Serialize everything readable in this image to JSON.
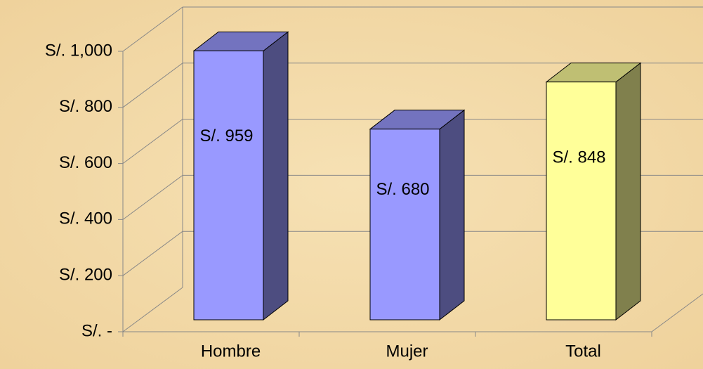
{
  "chart_data": {
    "type": "bar3d",
    "categories": [
      "Hombre",
      "Mujer",
      "Total"
    ],
    "series": [
      {
        "values": [
          959,
          680,
          848
        ],
        "value_labels": [
          "S/. 959",
          "S/. 680",
          "S/. 848"
        ],
        "colors": [
          "#9999ff",
          "#9999ff",
          "#ffff99"
        ]
      }
    ],
    "ylim": [
      0,
      1000
    ],
    "yticks": [
      {
        "value": 0,
        "label": "S/. -"
      },
      {
        "value": 200,
        "label": "S/. 200"
      },
      {
        "value": 400,
        "label": "S/. 400"
      },
      {
        "value": 600,
        "label": "S/. 600"
      },
      {
        "value": 800,
        "label": "S/. 800"
      },
      {
        "value": 1000,
        "label": "S/. 1,000"
      }
    ],
    "grid": true
  }
}
